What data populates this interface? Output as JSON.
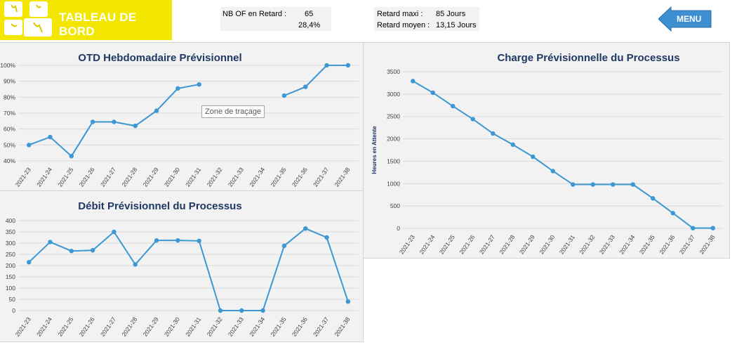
{
  "header": {
    "title": "TABLEAU DE BORD",
    "kpi_left": {
      "label": "NB OF en Retard :",
      "value": "65",
      "percent": "28,4%"
    },
    "kpi_right": {
      "max_label": "Retard maxi :",
      "max_value": "85 Jours",
      "avg_label": "Retard moyen :",
      "avg_value": "13,15 Jours"
    },
    "menu_label": "MENU"
  },
  "colors": {
    "accent_yellow": "#f3e600",
    "series": "#3c97d3",
    "menu": "#3d8fd1",
    "title": "#1f3864"
  },
  "tooltip": "Zone de traçage",
  "chart_data": [
    {
      "type": "line",
      "title": "OTD Hebdomadaire Prévisionnel",
      "categories": [
        "2021-23",
        "2021-24",
        "2021-25",
        "2021-26",
        "2021-27",
        "2021-28",
        "2021-29",
        "2021-30",
        "2021-31",
        "2021-32",
        "2021-33",
        "2021-34",
        "2021-35",
        "2021-36",
        "2021-37",
        "2021-38"
      ],
      "values": [
        50,
        55,
        43,
        64.5,
        64.5,
        62,
        71.5,
        85.5,
        88,
        null,
        null,
        null,
        81,
        86.5,
        100,
        100
      ],
      "yticks": [
        "40%",
        "50%",
        "60%",
        "70%",
        "80%",
        "90%",
        "100%"
      ],
      "ylim": [
        40,
        100
      ],
      "grid": true
    },
    {
      "type": "line",
      "title": "Débit Prévisionnel du Processus",
      "categories": [
        "2021-23",
        "2021-24",
        "2021-25",
        "2021-26",
        "2021-27",
        "2021-28",
        "2021-29",
        "2021-30",
        "2021-31",
        "2021-32",
        "2021-33",
        "2021-34",
        "2021-35",
        "2021-36",
        "2021-37",
        "2021-38"
      ],
      "values": [
        215,
        305,
        265,
        268,
        350,
        205,
        312,
        312,
        310,
        0,
        0,
        0,
        288,
        365,
        325,
        40
      ],
      "yticks": [
        "0",
        "50",
        "100",
        "150",
        "200",
        "250",
        "300",
        "350",
        "400"
      ],
      "ylim": [
        0,
        400
      ],
      "grid": true
    },
    {
      "type": "line",
      "title": "Charge Prévisionnelle du Processus",
      "ylabel": "Heures en Attente",
      "categories": [
        "2021-23",
        "2021-24",
        "2021-25",
        "2021-26",
        "2021-27",
        "2021-28",
        "2021-29",
        "2021-30",
        "2021-31",
        "2021-32",
        "2021-33",
        "2021-34",
        "2021-35",
        "2021-36",
        "2021-37",
        "2021-38"
      ],
      "values": [
        3290,
        3030,
        2730,
        2440,
        2120,
        1870,
        1600,
        1280,
        980,
        980,
        980,
        980,
        670,
        340,
        5,
        5
      ],
      "yticks": [
        "0",
        "500",
        "1000",
        "1500",
        "2000",
        "2500",
        "3000",
        "3500"
      ],
      "ylim": [
        0,
        3500
      ],
      "grid": true
    }
  ]
}
